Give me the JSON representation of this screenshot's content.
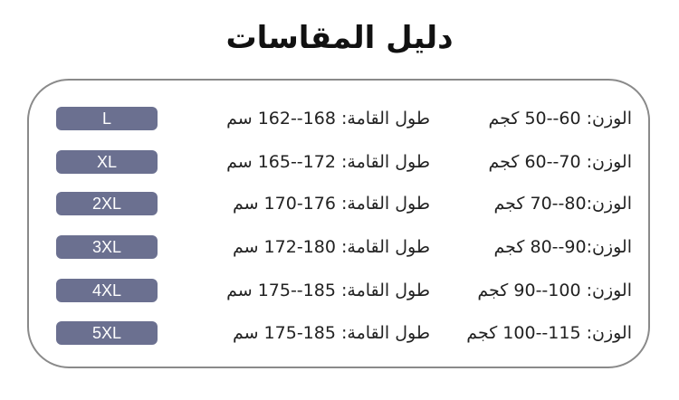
{
  "title": "دليل المقاسات",
  "colors": {
    "pill": "#6b7090",
    "border": "#8a8a8a"
  },
  "rows": [
    {
      "size": "L",
      "height": "طول القامة: 168--162 سم",
      "weight": "الوزن: 60--50 كجم"
    },
    {
      "size": "XL",
      "height": "طول القامة: 172--165 سم",
      "weight": "الوزن: 70--60 كجم"
    },
    {
      "size": "2XL",
      "height": "طول القامة: 176-170 سم",
      "weight": "الوزن:80--70 كجم"
    },
    {
      "size": "3XL",
      "height": "طول القامة: 180-172 سم",
      "weight": "الوزن:90--80 كجم"
    },
    {
      "size": "4XL",
      "height": "طول القامة: 185--175 سم",
      "weight": "الوزن: 100--90 كجم"
    },
    {
      "size": "5XL",
      "height": "طول القامة: 185-175 سم",
      "weight": "الوزن: 115--100 كجم"
    }
  ]
}
